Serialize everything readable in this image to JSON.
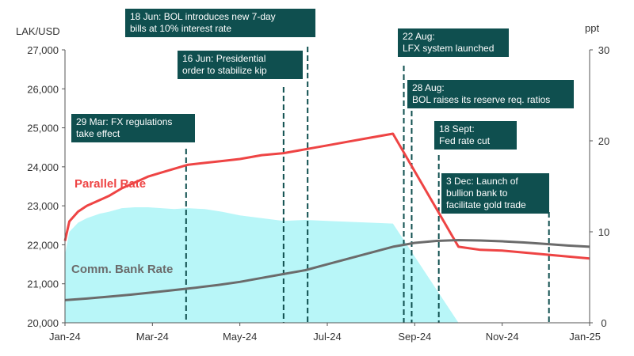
{
  "chart_data": {
    "type": "line",
    "left_axis_label": "LAK/USD",
    "right_axis_label": "ppt",
    "left_ylim": [
      20000,
      27000
    ],
    "right_ylim": [
      0,
      30
    ],
    "left_ticks": [
      "20,000",
      "21,000",
      "22,000",
      "23,000",
      "24,000",
      "25,000",
      "26,000",
      "27,000"
    ],
    "right_ticks": [
      "0",
      "10",
      "20",
      "30"
    ],
    "x_ticks": [
      "Jan-24",
      "Mar-24",
      "May-24",
      "Jul-24",
      "Sep-24",
      "Nov-24",
      "Jan-25"
    ],
    "x_months_range": [
      0,
      12
    ],
    "colors": {
      "parallel": "#ee4444",
      "comm": "#6b6b6b",
      "spread": "#b8f6f8",
      "annotation": "#0f4f4f",
      "axis": "#555555"
    },
    "series": [
      {
        "name": "Parallel Rate",
        "axis": "left",
        "x": [
          0,
          0.1,
          0.3,
          0.5,
          0.8,
          1.0,
          1.3,
          1.6,
          1.9,
          2.2,
          2.5,
          2.8,
          3.2,
          3.6,
          4.0,
          4.5,
          5.0,
          5.5,
          6.0,
          6.5,
          7.0,
          7.5,
          9.0,
          9.5,
          10.0,
          10.5,
          11.0,
          11.5,
          12.0
        ],
        "values": [
          22100,
          22600,
          22850,
          23000,
          23150,
          23250,
          23450,
          23600,
          23750,
          23850,
          23950,
          24050,
          24100,
          24150,
          24200,
          24300,
          24350,
          24450,
          24550,
          24650,
          24750,
          24850,
          21950,
          21870,
          21850,
          21800,
          21750,
          21700,
          21650
        ]
      },
      {
        "name": "Comm. Bank Rate",
        "axis": "left",
        "x": [
          0,
          0.5,
          1.0,
          1.5,
          2.0,
          2.5,
          3.0,
          3.5,
          4.0,
          4.5,
          5.0,
          5.5,
          6.0,
          6.5,
          7.0,
          7.5,
          8.0,
          8.5,
          9.0,
          9.5,
          10.0,
          10.5,
          11.0,
          11.5,
          12.0
        ],
        "values": [
          20580,
          20620,
          20670,
          20720,
          20780,
          20840,
          20900,
          20970,
          21050,
          21150,
          21250,
          21350,
          21500,
          21650,
          21800,
          21950,
          22050,
          22100,
          22120,
          22110,
          22090,
          22060,
          22020,
          21980,
          21950
        ]
      },
      {
        "name": "Spread",
        "axis": "right",
        "x": [
          0,
          0.1,
          0.3,
          0.5,
          0.8,
          1.0,
          1.3,
          1.6,
          1.9,
          2.2,
          2.5,
          2.8,
          3.2,
          3.6,
          4.0,
          4.5,
          5.0,
          5.5,
          6.0,
          6.5,
          7.0,
          7.5,
          9.0,
          9.5,
          10.0,
          10.5,
          11.0,
          11.5,
          12.0
        ],
        "values": [
          7.5,
          10.0,
          11.0,
          11.5,
          12.0,
          12.2,
          12.6,
          12.7,
          12.7,
          12.6,
          12.5,
          12.6,
          12.5,
          12.2,
          11.8,
          11.5,
          11.2,
          11.3,
          11.2,
          11.1,
          11.0,
          10.9,
          0,
          0,
          0,
          0,
          0,
          0,
          0
        ]
      }
    ],
    "labels": {
      "parallel": "Parallel Rate",
      "comm": "Comm. Bank Rate"
    },
    "annotations": [
      {
        "text": [
          "18 Jun: BOL introduces new 7-day",
          "bills at 10% interest rate"
        ],
        "month": 5.55
      },
      {
        "text": [
          "16 Jun: Presidential",
          "order to stabilize kip"
        ],
        "month": 5.0
      },
      {
        "text": [
          "22 Aug:",
          "LFX system launched"
        ],
        "month": 7.75
      },
      {
        "text": [
          "28 Aug:",
          "BOL raises its reserve req. ratios"
        ],
        "month": 7.93
      },
      {
        "text": [
          "29 Mar: FX regulations",
          "take effect"
        ],
        "month": 2.77
      },
      {
        "text": [
          "18 Sept:",
          "Fed rate cut"
        ],
        "month": 8.55
      },
      {
        "text": [
          "3 Dec: Launch of",
          "bullion bank to",
          "facilitate gold trade"
        ],
        "month": 11.07
      }
    ]
  }
}
